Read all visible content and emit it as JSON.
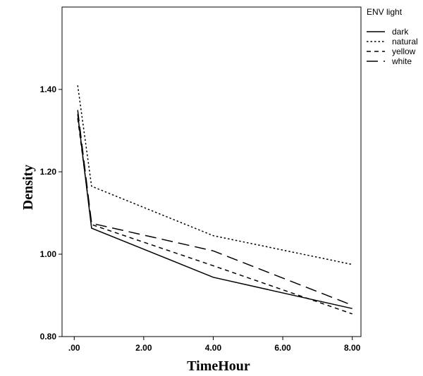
{
  "chart_data": {
    "type": "line",
    "xlabel": "TimeHour",
    "ylabel": "Density",
    "xlim": [
      -0.35,
      8.25
    ],
    "ylim": [
      0.8,
      1.6
    ],
    "x_ticks": [
      0,
      2,
      4,
      6,
      8
    ],
    "x_tick_labels": [
      ".00",
      "2.00",
      "4.00",
      "6.00",
      "8.00"
    ],
    "y_ticks": [
      0.8,
      1.0,
      1.2,
      1.4
    ],
    "y_tick_labels": [
      "0.80",
      "1.00",
      "1.20",
      "1.40"
    ],
    "grid": false,
    "legend": {
      "title": "ENV light",
      "placement": "right"
    },
    "series": [
      {
        "name": "dark",
        "dash": "solid",
        "x": [
          0.1,
          0.5,
          4.0,
          8.0
        ],
        "y": [
          1.34,
          1.063,
          0.944,
          0.868
        ]
      },
      {
        "name": "natural",
        "dash": "dotted",
        "x": [
          0.1,
          0.5,
          4.0,
          8.0
        ],
        "y": [
          1.41,
          1.165,
          1.045,
          0.975
        ]
      },
      {
        "name": "yellow",
        "dash": "dashed",
        "x": [
          0.1,
          0.5,
          4.0,
          8.0
        ],
        "y": [
          1.33,
          1.072,
          0.972,
          0.855
        ]
      },
      {
        "name": "white",
        "dash": "long-dashed",
        "x": [
          0.1,
          0.5,
          4.0,
          8.0
        ],
        "y": [
          1.35,
          1.075,
          1.008,
          0.876
        ]
      }
    ]
  }
}
